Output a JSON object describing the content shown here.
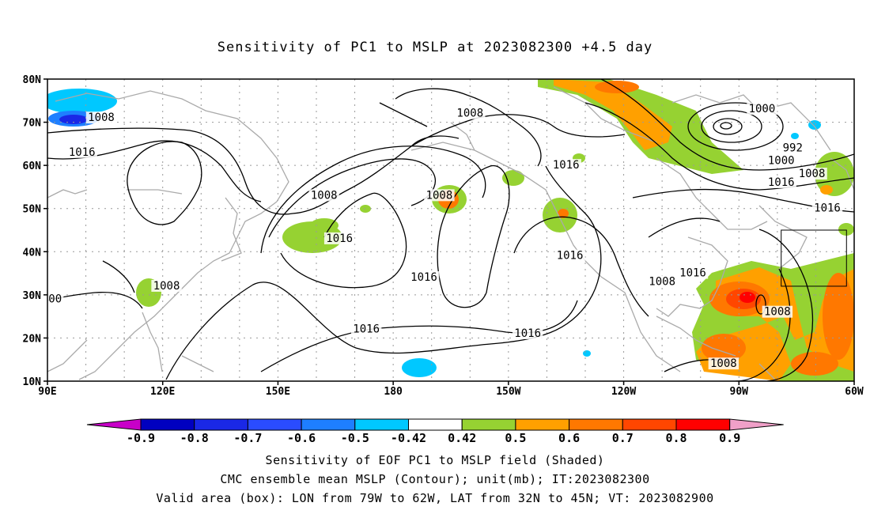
{
  "title": "Sensitivity of PC1 to MSLP at 2023082300 +4.5 day",
  "map": {
    "lon_range": [
      90,
      300
    ],
    "lat_range": [
      10,
      80
    ],
    "lat_ticks": [
      {
        "value": 10,
        "label": "10N"
      },
      {
        "value": 20,
        "label": "20N"
      },
      {
        "value": 30,
        "label": "30N"
      },
      {
        "value": 40,
        "label": "40N"
      },
      {
        "value": 50,
        "label": "50N"
      },
      {
        "value": 60,
        "label": "60N"
      },
      {
        "value": 70,
        "label": "70N"
      },
      {
        "value": 80,
        "label": "80N"
      }
    ],
    "lon_ticks": [
      {
        "value": 90,
        "label": "90E"
      },
      {
        "value": 120,
        "label": "120E"
      },
      {
        "value": 150,
        "label": "150E"
      },
      {
        "value": 180,
        "label": "180"
      },
      {
        "value": 210,
        "label": "150W"
      },
      {
        "value": 240,
        "label": "120W"
      },
      {
        "value": 270,
        "label": "90W"
      },
      {
        "value": 300,
        "label": "60W"
      }
    ],
    "valid_box": {
      "lon_min": 281,
      "lon_max": 298,
      "lat_min": 32,
      "lat_max": 45
    },
    "contour_labels": [
      {
        "text": "1008",
        "lon": 104,
        "lat": 71
      },
      {
        "text": "1016",
        "lon": 99,
        "lat": 63
      },
      {
        "text": "1008",
        "lon": 162,
        "lat": 53
      },
      {
        "text": "1016",
        "lon": 166,
        "lat": 43
      },
      {
        "text": "1008",
        "lon": 200,
        "lat": 72
      },
      {
        "text": "1008",
        "lon": 192,
        "lat": 53
      },
      {
        "text": "1016",
        "lon": 225,
        "lat": 60
      },
      {
        "text": "1016",
        "lon": 226,
        "lat": 39
      },
      {
        "text": "1016",
        "lon": 188,
        "lat": 34
      },
      {
        "text": "1016",
        "lon": 173,
        "lat": 22
      },
      {
        "text": "1016",
        "lon": 215,
        "lat": 21
      },
      {
        "text": "1008",
        "lon": 250,
        "lat": 33
      },
      {
        "text": "1016",
        "lon": 258,
        "lat": 35
      },
      {
        "text": "1000",
        "lon": 276,
        "lat": 73
      },
      {
        "text": "992",
        "lon": 284,
        "lat": 64
      },
      {
        "text": "1000",
        "lon": 281,
        "lat": 61
      },
      {
        "text": "1008",
        "lon": 289,
        "lat": 58
      },
      {
        "text": "1016",
        "lon": 281,
        "lat": 56
      },
      {
        "text": "1016",
        "lon": 293,
        "lat": 50
      },
      {
        "text": "1008",
        "lon": 121,
        "lat": 32
      },
      {
        "text": "00",
        "lon": 92,
        "lat": 29
      },
      {
        "text": "1008",
        "lon": 280,
        "lat": 26
      },
      {
        "text": "1008",
        "lon": 266,
        "lat": 14
      }
    ],
    "contour_color": "#000000",
    "coast_color": "#aaaaaa",
    "grid_color": "#999999"
  },
  "colorbar": {
    "labels": [
      "-0.9",
      "-0.8",
      "-0.7",
      "-0.6",
      "-0.5",
      "-0.42",
      "0.42",
      "0.5",
      "0.6",
      "0.7",
      "0.8",
      "0.9"
    ],
    "colors": [
      "#c800c8",
      "#0000c0",
      "#1a28e6",
      "#2a4cff",
      "#1e7fff",
      "#00c8ff",
      "#ffffff",
      "#96d232",
      "#ffa000",
      "#ff7800",
      "#ff4600",
      "#ff0000",
      "#f0a0c8"
    ]
  },
  "captions": {
    "line1": "Sensitivity of EOF PC1 to MSLP field (Shaded)",
    "line2": "CMC ensemble mean MSLP (Contour); unit(mb); IT:2023082300",
    "line3": "Valid area (box): LON from 79W to 62W, LAT from 32N to 45N; VT: 2023082900"
  }
}
